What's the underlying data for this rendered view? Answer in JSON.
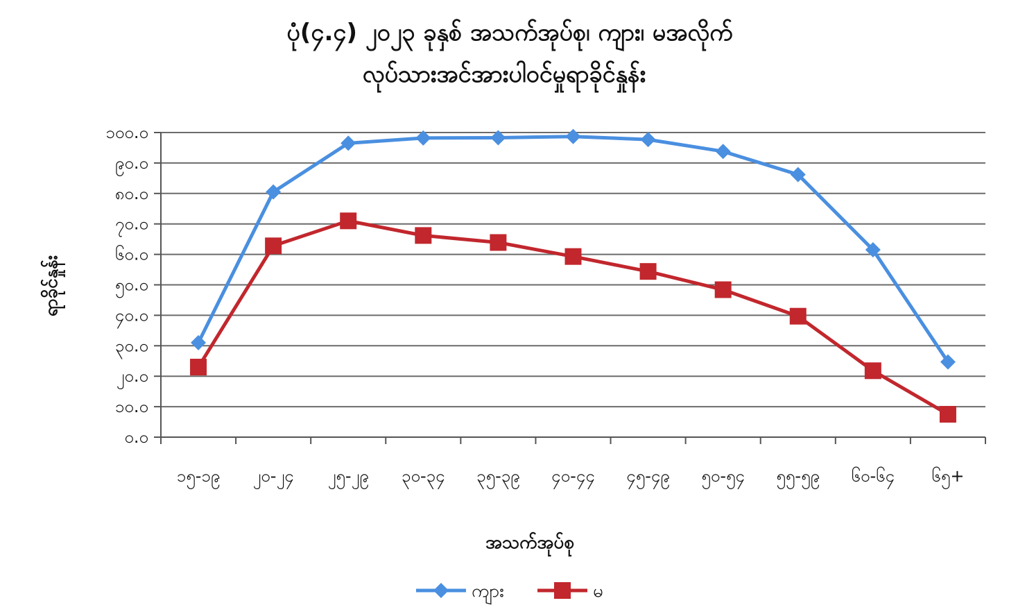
{
  "chart_data": {
    "type": "line",
    "title_lines": [
      "ပုံ(၄.၄) ၂၀၂၃ ခုနှစ် အသက်အုပ်စု၊ ကျား၊ မအလိုက်",
      "လုပ်သားအင်အားပါဝင်မှုရာခိုင်နှုန်း"
    ],
    "xlabel": "အသက်အုပ်စု",
    "ylabel": "ရာခိုင်နှုန်း",
    "categories": [
      "၁၅-၁၉",
      "၂၀-၂၄",
      "၂၅-၂၉",
      "၃၀-၃၄",
      "၃၅-၃၉",
      "၄၀-၄၄",
      "၄၅-၄၉",
      "၅၀-၅၄",
      "၅၅-၅၉",
      "၆၀-၆၄",
      "၆၅+"
    ],
    "y_tick_labels": [
      "၀.၀",
      "၁၀.၀",
      "၂၀.၀",
      "၃၀.၀",
      "၄၀.၀",
      "၅၀.၀",
      "၆၀.၀",
      "၇၀.၀",
      "၈၀.၀",
      "၉၀.၀",
      "၁၀၀.၀"
    ],
    "ylim": [
      0,
      100
    ],
    "y_tick_step": 10,
    "grid": true,
    "legend_position": "bottom",
    "series": [
      {
        "name": "ကျား",
        "color": "#4a8fe0",
        "marker": "diamond",
        "values": [
          31.0,
          80.5,
          96.5,
          98.2,
          98.3,
          98.7,
          97.7,
          93.8,
          86.2,
          61.5,
          24.7
        ]
      },
      {
        "name": "မ",
        "color": "#c1272d",
        "marker": "square",
        "values": [
          23.0,
          62.8,
          71.0,
          66.2,
          63.9,
          59.3,
          54.4,
          48.4,
          39.7,
          21.8,
          7.5
        ]
      }
    ]
  }
}
